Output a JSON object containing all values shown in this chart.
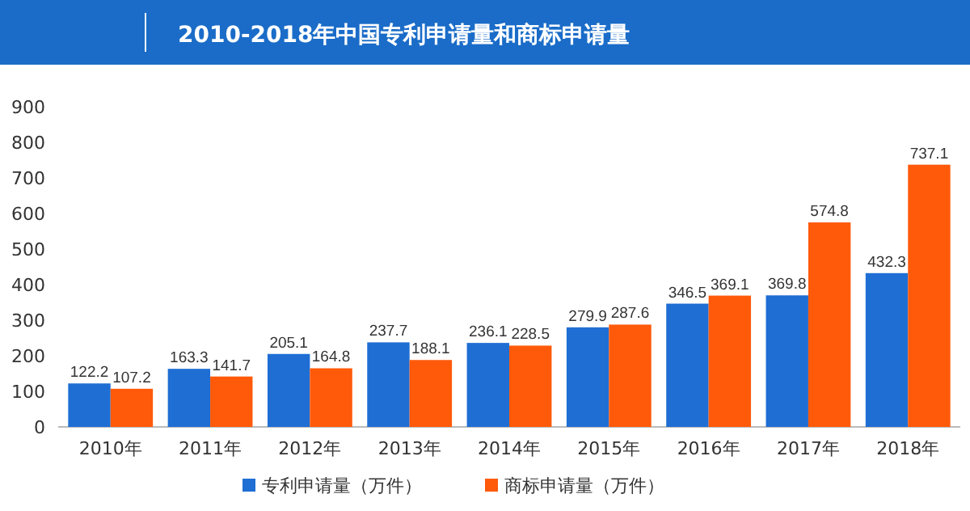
{
  "chart_data": {
    "type": "bar",
    "title": "2010-2018年中国专利申请量和商标申请量",
    "categories": [
      "2010年",
      "2011年",
      "2012年",
      "2013年",
      "2014年",
      "2015年",
      "2016年",
      "2017年",
      "2018年"
    ],
    "series": [
      {
        "name": "专利申请量（万件）",
        "color": "#1f6ed4",
        "values": [
          122.2,
          163.3,
          205.1,
          237.7,
          236.1,
          279.9,
          346.5,
          369.8,
          432.3
        ]
      },
      {
        "name": "商标申请量（万件）",
        "color": "#ff5a0a",
        "values": [
          107.2,
          141.7,
          164.8,
          188.1,
          228.5,
          287.6,
          369.1,
          574.8,
          737.1
        ]
      }
    ],
    "ylim": [
      0,
      900
    ],
    "yticks": [
      0,
      100,
      200,
      300,
      400,
      500,
      600,
      700,
      800,
      900
    ],
    "data_labels": true,
    "legend": "bottom",
    "grid": false
  }
}
